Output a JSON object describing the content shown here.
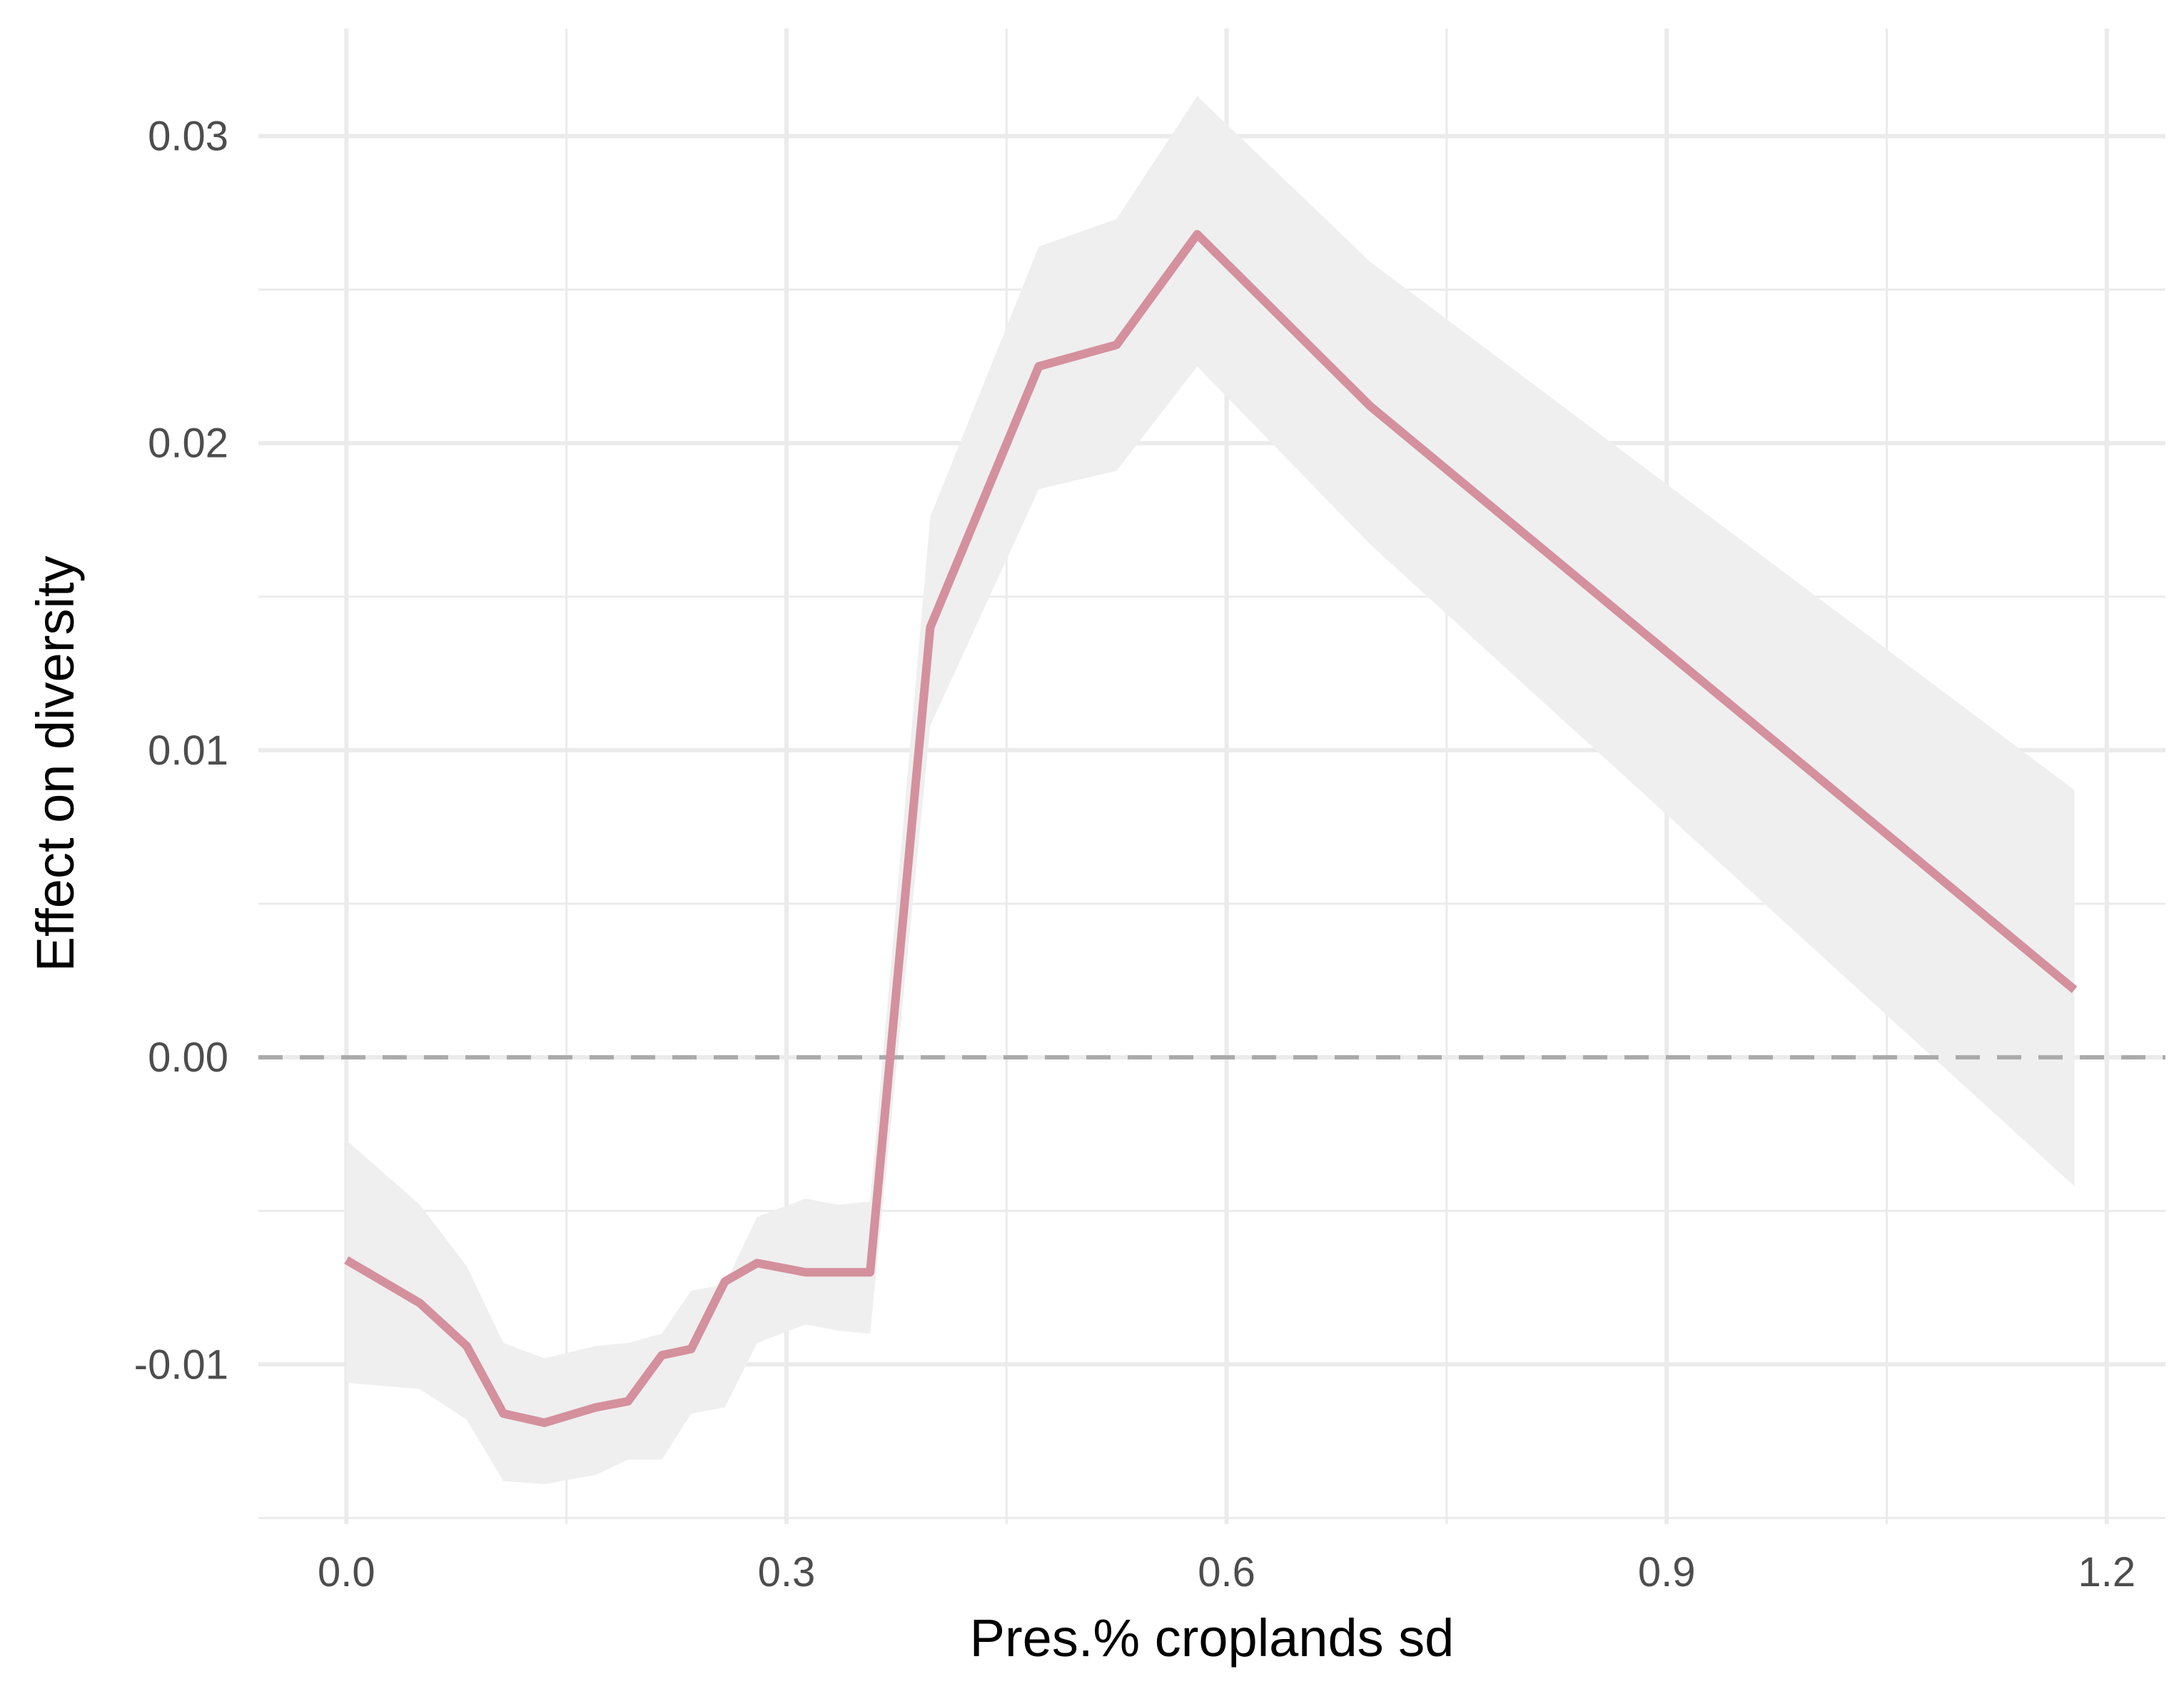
{
  "chart_data": {
    "type": "line",
    "title": "",
    "xlabel": "Pres.% croplands sd",
    "ylabel": "Effect on diversity",
    "xlim": [
      -0.06,
      1.24
    ],
    "ylim": [
      -0.0152,
      0.0335
    ],
    "x_ticks": [
      0.0,
      0.3,
      0.6,
      0.9,
      1.2
    ],
    "x_tick_labels": [
      "0.0",
      "0.3",
      "0.6",
      "0.9",
      "1.2"
    ],
    "y_ticks": [
      -0.01,
      0.0,
      0.01,
      0.02,
      0.03
    ],
    "y_tick_labels": [
      "-0.01",
      "0.00",
      "0.01",
      "0.02",
      "0.03"
    ],
    "grid": true,
    "reference_line": {
      "y": 0,
      "style": "dashed",
      "color": "#aaaaaa"
    },
    "series": [
      {
        "x": [
          0.0,
          0.05,
          0.082,
          0.107,
          0.135,
          0.17,
          0.192,
          0.215,
          0.235,
          0.258,
          0.28,
          0.313,
          0.335,
          0.357,
          0.398,
          0.472,
          0.525,
          0.58,
          0.698,
          1.178
        ],
        "y": [
          -0.0066,
          -0.008,
          -0.0094,
          -0.0116,
          -0.0119,
          -0.0114,
          -0.0112,
          -0.0097,
          -0.0095,
          -0.0073,
          -0.0067,
          -0.007,
          -0.007,
          -0.007,
          0.014,
          0.0225,
          0.0232,
          0.0268,
          0.0212,
          0.0022
        ],
        "lower": [
          -0.0106,
          -0.0108,
          -0.0118,
          -0.0138,
          -0.0139,
          -0.0136,
          -0.0131,
          -0.0131,
          -0.0116,
          -0.0114,
          -0.0093,
          -0.0087,
          -0.0089,
          -0.009,
          0.0108,
          0.0185,
          0.0191,
          0.0225,
          0.0167,
          -0.0042
        ],
        "upper": [
          -0.0027,
          -0.0048,
          -0.0068,
          -0.0093,
          -0.0098,
          -0.0094,
          -0.0093,
          -0.009,
          -0.0076,
          -0.0074,
          -0.0052,
          -0.0046,
          -0.0048,
          -0.0047,
          0.0176,
          0.0264,
          0.0273,
          0.0313,
          0.0259,
          0.0087
        ]
      }
    ],
    "colors": {
      "line": "#d4909d",
      "ribbon": "#efefef",
      "grid": "#ebebeb",
      "reference": "#aaaaaa"
    }
  }
}
